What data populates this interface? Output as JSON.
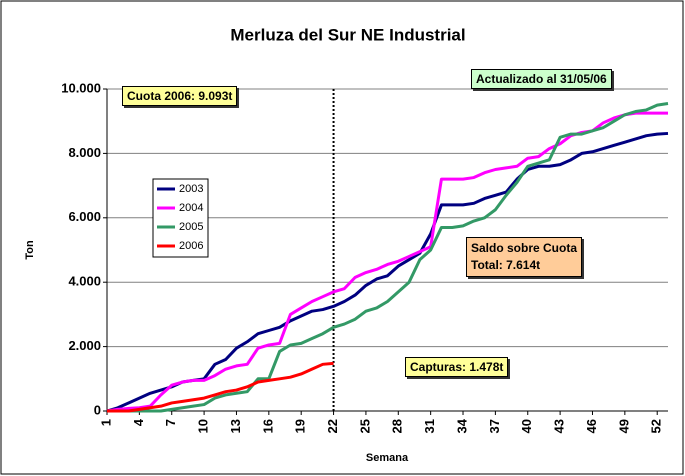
{
  "chart_data": {
    "type": "line",
    "title": "Merluza del Sur NE Industrial",
    "x_label": "Semana",
    "y_label": "Ton",
    "x": [
      1,
      2,
      3,
      4,
      5,
      6,
      7,
      8,
      9,
      10,
      11,
      12,
      13,
      14,
      15,
      16,
      17,
      18,
      19,
      20,
      21,
      22,
      23,
      24,
      25,
      26,
      27,
      28,
      29,
      30,
      31,
      32,
      33,
      34,
      35,
      36,
      37,
      38,
      39,
      40,
      41,
      42,
      43,
      44,
      45,
      46,
      47,
      48,
      49,
      50,
      51,
      52,
      53
    ],
    "xlim": [
      1,
      53
    ],
    "xticks": [
      1,
      4,
      7,
      10,
      13,
      16,
      19,
      22,
      25,
      28,
      31,
      34,
      37,
      40,
      43,
      46,
      49,
      52
    ],
    "ylim": [
      0,
      10000
    ],
    "yticks": [
      {
        "value": 0,
        "label": "0"
      },
      {
        "value": 2000,
        "label": "2.000"
      },
      {
        "value": 4000,
        "label": "4.000"
      },
      {
        "value": 6000,
        "label": "6.000"
      },
      {
        "value": 8000,
        "label": "8.000"
      },
      {
        "value": 10000,
        "label": "10.000"
      }
    ],
    "grid": true,
    "legend": "left",
    "reference_line_x": 22,
    "series": [
      {
        "name": "2003",
        "color": "#000080",
        "values": [
          0,
          100,
          250,
          400,
          550,
          650,
          750,
          900,
          950,
          1000,
          1450,
          1600,
          1950,
          2150,
          2400,
          2500,
          2600,
          2800,
          2950,
          3100,
          3150,
          3250,
          3400,
          3600,
          3900,
          4100,
          4200,
          4500,
          4700,
          4900,
          5500,
          6400,
          6400,
          6400,
          6450,
          6600,
          6700,
          6800,
          7200,
          7500,
          7600,
          7600,
          7650,
          7800,
          8000,
          8050,
          8150,
          8250,
          8350,
          8450,
          8550,
          8600,
          8620
        ]
      },
      {
        "name": "2004",
        "color": "#ff00ff",
        "values": [
          0,
          50,
          80,
          100,
          150,
          500,
          800,
          900,
          950,
          950,
          1100,
          1300,
          1400,
          1450,
          1950,
          2050,
          2100,
          3000,
          3200,
          3400,
          3550,
          3700,
          3800,
          4150,
          4300,
          4400,
          4550,
          4650,
          4800,
          4950,
          5100,
          7200,
          7200,
          7200,
          7250,
          7400,
          7500,
          7550,
          7600,
          7850,
          7900,
          8150,
          8300,
          8550,
          8650,
          8700,
          8950,
          9100,
          9200,
          9250,
          9250,
          9250,
          9250
        ]
      },
      {
        "name": "2005",
        "color": "#339966",
        "values": [
          0,
          0,
          0,
          0,
          0,
          0,
          50,
          100,
          150,
          200,
          400,
          500,
          550,
          600,
          1000,
          1000,
          1850,
          2050,
          2100,
          2250,
          2400,
          2600,
          2700,
          2850,
          3100,
          3200,
          3400,
          3700,
          4000,
          4700,
          5000,
          5700,
          5700,
          5750,
          5900,
          6000,
          6250,
          6700,
          7100,
          7600,
          7700,
          7800,
          8500,
          8600,
          8600,
          8700,
          8800,
          9000,
          9200,
          9300,
          9350,
          9500,
          9550
        ]
      },
      {
        "name": "2006",
        "color": "#ff0000",
        "values": [
          0,
          0,
          0,
          50,
          100,
          150,
          250,
          300,
          350,
          400,
          500,
          600,
          650,
          750,
          900,
          950,
          1000,
          1050,
          1150,
          1300,
          1450,
          1480,
          null,
          null,
          null,
          null,
          null,
          null,
          null,
          null,
          null,
          null,
          null,
          null,
          null,
          null,
          null,
          null,
          null,
          null,
          null,
          null,
          null,
          null,
          null,
          null,
          null,
          null,
          null,
          null,
          null,
          null,
          null
        ]
      }
    ],
    "notes": {
      "quota": "Cuota 2006: 9.093t",
      "updated": "Actualizado al 31/05/06",
      "balance": [
        "Saldo sobre Cuota",
        "Total: 7.614t"
      ],
      "catch": "Capturas: 1.478t"
    }
  }
}
